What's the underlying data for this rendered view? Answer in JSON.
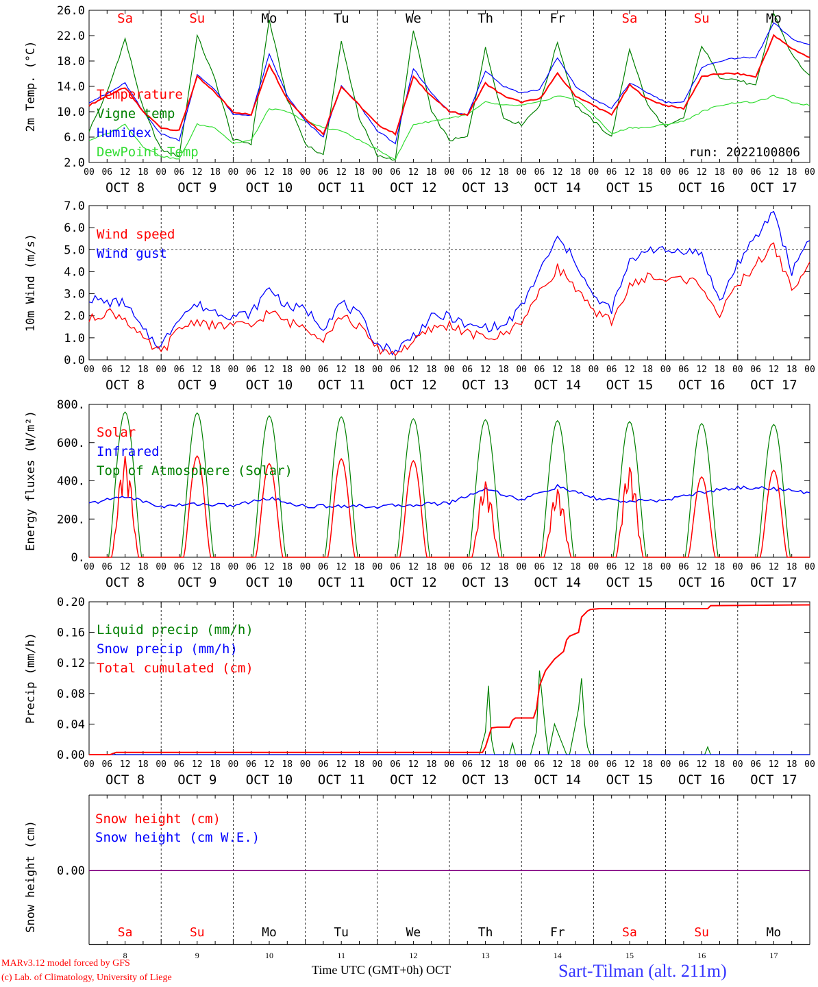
{
  "weekdays": [
    "Sa",
    "Su",
    "Mo",
    "Tu",
    "We",
    "Th",
    "Fr",
    "Sa",
    "Su",
    "Mo"
  ],
  "weekend_flags": [
    true,
    true,
    false,
    false,
    false,
    false,
    false,
    true,
    true,
    false
  ],
  "date_labels": [
    "OCT  8",
    "OCT  9",
    "OCT 10",
    "OCT 11",
    "OCT 12",
    "OCT 13",
    "OCT 14",
    "OCT 15",
    "OCT 16",
    "OCT 17"
  ],
  "day_numbers": [
    "8",
    "9",
    "10",
    "11",
    "12",
    "13",
    "14",
    "15",
    "16",
    "17"
  ],
  "hour_labels": [
    "00",
    "06",
    "12",
    "18"
  ],
  "last_hour_label": "00",
  "colors": {
    "red": "#ff0000",
    "green": "#008000",
    "blue": "#0000ff",
    "lightgreen": "#33dd33",
    "purple": "#800080",
    "weekend": "#ff0000",
    "weekday": "#000000"
  },
  "footer": {
    "model": "MARv3.12 model forced by GFS",
    "lab": "(c) Lab. of Climatology, University of Liege",
    "axis": "Time UTC (GMT+0h) OCT",
    "station": "Sart-Tilman (alt. 211m)"
  },
  "chart_data": [
    {
      "type": "line",
      "ylabel": "2m Temp. (°C)",
      "ylim": [
        2,
        26
      ],
      "ytick_labels": [
        "2.0",
        "6.0",
        "10.0",
        "14.0",
        "18.0",
        "22.0",
        "26.0"
      ],
      "annotation": "run: 2022100806",
      "x_unit": "hours since Oct 8 00 UTC",
      "series": [
        {
          "name": "Temperature",
          "color": "red",
          "x": [
            0,
            6,
            12,
            18,
            24,
            30,
            36,
            42,
            48,
            54,
            60,
            66,
            72,
            78,
            84,
            90,
            96,
            102,
            108,
            114,
            120,
            126,
            132,
            138,
            144,
            150,
            156,
            162,
            168,
            174,
            180,
            186,
            192,
            198,
            204,
            210,
            216,
            222,
            228,
            234,
            240
          ],
          "values": [
            11.0,
            12.5,
            13.8,
            10.0,
            7.5,
            7.0,
            15.5,
            13.0,
            10.0,
            9.5,
            17.5,
            12.0,
            9.0,
            6.5,
            14.0,
            11.0,
            8.0,
            6.5,
            15.5,
            12.5,
            10.0,
            9.5,
            14.5,
            12.5,
            11.5,
            12.0,
            16.0,
            12.5,
            11.0,
            9.5,
            14.2,
            12.0,
            11.0,
            10.5,
            15.5,
            16.0,
            16.0,
            15.5,
            22.0,
            20.0,
            18.5
          ]
        },
        {
          "name": "Vigne temp",
          "color": "green",
          "x": [
            0,
            6,
            12,
            18,
            24,
            30,
            36,
            42,
            48,
            54,
            60,
            66,
            72,
            78,
            84,
            90,
            96,
            102,
            108,
            114,
            120,
            126,
            132,
            138,
            144,
            150,
            156,
            162,
            168,
            174,
            180,
            186,
            192,
            198,
            204,
            210,
            216,
            222,
            228,
            234,
            240
          ],
          "values": [
            7.0,
            13.0,
            21.5,
            10.5,
            4.0,
            3.0,
            22.0,
            15.0,
            5.5,
            5.0,
            24.5,
            12.0,
            5.0,
            3.0,
            21.0,
            9.0,
            3.0,
            2.5,
            23.0,
            10.0,
            5.5,
            6.0,
            20.0,
            9.0,
            8.0,
            11.0,
            21.0,
            11.0,
            8.5,
            6.0,
            20.0,
            11.0,
            7.5,
            9.0,
            20.5,
            15.5,
            15.0,
            14.0,
            25.5,
            19.0,
            15.5
          ]
        },
        {
          "name": "Humidex",
          "color": "blue",
          "x": [
            0,
            6,
            12,
            18,
            24,
            30,
            36,
            42,
            48,
            54,
            60,
            66,
            72,
            78,
            84,
            90,
            96,
            102,
            108,
            114,
            120,
            126,
            132,
            138,
            144,
            150,
            156,
            162,
            168,
            174,
            180,
            186,
            192,
            198,
            204,
            210,
            216,
            222,
            228,
            234,
            240
          ],
          "values": [
            11.5,
            12.8,
            14.5,
            10.0,
            6.5,
            5.5,
            15.8,
            13.5,
            9.5,
            9.5,
            19.0,
            12.5,
            8.5,
            6.0,
            14.0,
            11.0,
            7.0,
            5.0,
            16.8,
            13.0,
            10.0,
            9.5,
            16.5,
            14.0,
            13.0,
            13.5,
            18.5,
            14.0,
            12.0,
            10.5,
            14.5,
            13.0,
            11.5,
            11.5,
            17.0,
            18.0,
            18.5,
            18.5,
            24.0,
            21.5,
            20.5
          ]
        },
        {
          "name": "DewPoint Temp",
          "color": "lightgreen",
          "x": [
            0,
            6,
            12,
            18,
            24,
            30,
            36,
            42,
            48,
            54,
            60,
            66,
            72,
            78,
            84,
            90,
            96,
            102,
            108,
            114,
            120,
            126,
            132,
            138,
            144,
            150,
            156,
            162,
            168,
            174,
            180,
            186,
            192,
            198,
            204,
            210,
            216,
            222,
            228,
            234,
            240
          ],
          "values": [
            5.5,
            6.5,
            8.0,
            4.5,
            3.0,
            2.5,
            8.0,
            7.5,
            5.0,
            5.5,
            10.5,
            10.0,
            8.5,
            7.5,
            7.0,
            5.5,
            4.0,
            2.5,
            8.0,
            8.5,
            9.0,
            9.5,
            11.5,
            11.0,
            11.0,
            11.5,
            12.5,
            12.0,
            9.5,
            6.5,
            7.5,
            7.5,
            8.0,
            8.5,
            10.0,
            11.0,
            11.5,
            11.5,
            12.5,
            11.5,
            11.0
          ]
        }
      ]
    },
    {
      "type": "line",
      "ylabel": "10m Wind (m/s)",
      "ylim": [
        0,
        7
      ],
      "ytick_labels": [
        "0.0",
        "1.0",
        "2.0",
        "3.0",
        "4.0",
        "5.0",
        "6.0",
        "7.0"
      ],
      "reference_line": 5.0,
      "x_unit": "hours since Oct 8 00 UTC",
      "series": [
        {
          "name": "Wind speed",
          "color": "red",
          "x": [
            0,
            6,
            12,
            18,
            24,
            30,
            36,
            42,
            48,
            54,
            60,
            66,
            72,
            78,
            84,
            90,
            96,
            102,
            108,
            114,
            120,
            126,
            132,
            138,
            144,
            150,
            156,
            162,
            168,
            174,
            180,
            186,
            192,
            198,
            204,
            210,
            216,
            222,
            228,
            234,
            240
          ],
          "values": [
            1.8,
            2.2,
            1.9,
            0.9,
            0.3,
            1.4,
            1.8,
            1.5,
            1.6,
            1.5,
            2.2,
            1.7,
            1.5,
            1.0,
            2.0,
            1.5,
            0.5,
            0.3,
            0.8,
            1.4,
            1.6,
            1.2,
            1.0,
            1.1,
            1.8,
            3.0,
            4.2,
            3.3,
            2.1,
            1.8,
            3.3,
            3.8,
            3.6,
            3.7,
            3.4,
            2.0,
            3.4,
            4.3,
            5.2,
            3.2,
            4.3
          ]
        },
        {
          "name": "Wind gust",
          "color": "blue",
          "x": [
            0,
            6,
            12,
            18,
            24,
            30,
            36,
            42,
            48,
            54,
            60,
            66,
            72,
            78,
            84,
            90,
            96,
            102,
            108,
            114,
            120,
            126,
            132,
            138,
            144,
            150,
            156,
            162,
            168,
            174,
            180,
            186,
            192,
            198,
            204,
            210,
            216,
            222,
            228,
            234,
            240
          ],
          "values": [
            2.8,
            2.6,
            2.6,
            1.3,
            0.6,
            2.0,
            2.5,
            2.2,
            2.0,
            2.1,
            3.3,
            2.4,
            2.3,
            1.5,
            2.6,
            2.0,
            0.7,
            0.4,
            1.1,
            1.9,
            2.0,
            1.5,
            1.5,
            1.5,
            2.4,
            4.0,
            5.5,
            4.5,
            2.8,
            2.3,
            4.4,
            5.1,
            4.9,
            5.0,
            4.8,
            2.6,
            4.4,
            5.5,
            6.8,
            4.0,
            5.6
          ]
        }
      ]
    },
    {
      "type": "line",
      "ylabel": "Energy fluxes (W/m²)",
      "ylim": [
        0,
        800
      ],
      "ytick_labels": [
        "0.",
        "200.",
        "400.",
        "600.",
        "800."
      ],
      "x_unit": "hours since Oct 8 00 UTC",
      "series": [
        {
          "name": "Solar",
          "color": "red",
          "daily_peaks": [
            530,
            530,
            490,
            515,
            505,
            400,
            360,
            480,
            420,
            455
          ]
        },
        {
          "name": "Infrared",
          "color": "blue",
          "x": [
            0,
            12,
            24,
            36,
            48,
            60,
            72,
            84,
            96,
            108,
            120,
            132,
            144,
            156,
            168,
            180,
            192,
            204,
            216,
            228,
            240
          ],
          "values": [
            280,
            320,
            265,
            280,
            270,
            310,
            265,
            270,
            265,
            275,
            285,
            360,
            300,
            370,
            310,
            290,
            300,
            340,
            365,
            360,
            335
          ]
        },
        {
          "name": "Top of Atmosphere (Solar)",
          "color": "green",
          "daily_peaks": [
            760,
            755,
            740,
            735,
            725,
            720,
            715,
            710,
            700,
            695
          ]
        }
      ]
    },
    {
      "type": "line",
      "ylabel": "Precip (mm/h)",
      "ylim": [
        0,
        0.2
      ],
      "ytick_labels": [
        "0.00",
        "0.04",
        "0.08",
        "0.12",
        "0.16",
        "0.20"
      ],
      "x_unit": "hours since Oct 8 00 UTC",
      "series": [
        {
          "name": "Liquid precip (mm/h)",
          "color": "green",
          "x": [
            0,
            7,
            8,
            9,
            130,
            132,
            133,
            134,
            135,
            140,
            141,
            142,
            147,
            149,
            150,
            152,
            153,
            155,
            157,
            158,
            159,
            160,
            163,
            164,
            165,
            166,
            167,
            170,
            205,
            206,
            207,
            240
          ],
          "values": [
            0,
            0,
            0.002,
            0,
            0,
            0.03,
            0.09,
            0.02,
            0,
            0,
            0.015,
            0,
            0,
            0.03,
            0.11,
            0.03,
            0,
            0.04,
            0.02,
            0.01,
            0,
            0,
            0.06,
            0.1,
            0.04,
            0.01,
            0,
            0,
            0,
            0.01,
            0,
            0
          ]
        },
        {
          "name": "Snow precip (mm/h)",
          "color": "blue",
          "x": [
            0,
            240
          ],
          "values": [
            0,
            0
          ]
        },
        {
          "name": "Total cumulated (cm)",
          "color": "red",
          "x": [
            0,
            7,
            9,
            131,
            132,
            134,
            136,
            140,
            141,
            142,
            143,
            148,
            149,
            150,
            152,
            155,
            158,
            159,
            160,
            163,
            164,
            166,
            167,
            170,
            206,
            207,
            240
          ],
          "values": [
            0,
            0,
            0.003,
            0.003,
            0.01,
            0.035,
            0.036,
            0.036,
            0.045,
            0.048,
            0.048,
            0.048,
            0.06,
            0.09,
            0.11,
            0.125,
            0.135,
            0.15,
            0.155,
            0.16,
            0.18,
            0.188,
            0.19,
            0.191,
            0.191,
            0.195,
            0.196
          ]
        }
      ]
    },
    {
      "type": "line",
      "ylabel": "Snow height (cm)",
      "ytick_labels": [
        "0.00"
      ],
      "series": [
        {
          "name": "Snow height (cm)",
          "color": "red",
          "x": [
            0,
            240
          ],
          "values": [
            0,
            0
          ]
        },
        {
          "name": "Snow height (cm W.E.)",
          "color": "blue",
          "x": [
            0,
            240
          ],
          "values": [
            0,
            0
          ]
        }
      ]
    }
  ]
}
